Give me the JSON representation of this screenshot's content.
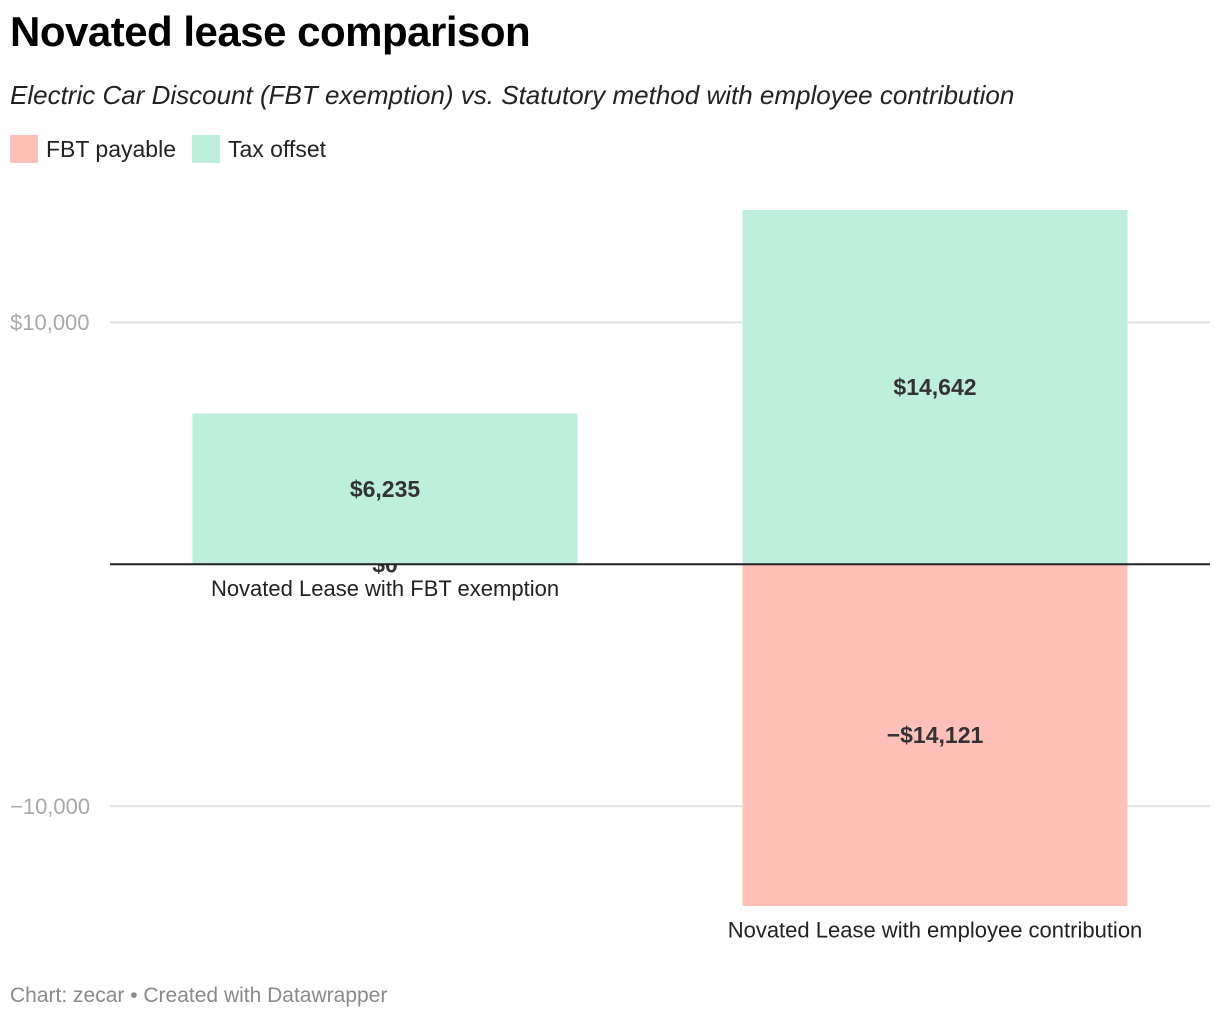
{
  "title": "Novated lease comparison",
  "subtitle": "Electric Car Discount (FBT exemption) vs. Statutory method with employee contribution",
  "legend": [
    {
      "label": "FBT payable",
      "color": "#ffc0b7"
    },
    {
      "label": "Tax offset",
      "color": "#bdefdc"
    }
  ],
  "footer": "Chart: zecar • Created with Datawrapper",
  "colors": {
    "grid": "#e1e1e1",
    "tick_text": "#a8a8a8",
    "baseline": "#222222",
    "value_label": "#333333"
  },
  "chart_data": {
    "type": "bar",
    "stacked": true,
    "title": "Novated lease comparison",
    "subtitle": "Electric Car Discount (FBT exemption) vs. Statutory method with employee contribution",
    "xlabel": "",
    "ylabel": "",
    "ylim": [
      -14121,
      14642
    ],
    "grid": true,
    "categories": [
      "Novated Lease with FBT exemption",
      "Novated Lease with employee contribution"
    ],
    "y_ticks": [
      {
        "value": 10000,
        "label": "$10,000"
      },
      {
        "value": -10000,
        "label": "−10,000"
      }
    ],
    "series": [
      {
        "name": "FBT payable",
        "color": "#ffc0b7",
        "values": [
          0,
          -14121
        ],
        "labels": [
          "$0",
          "−$14,121"
        ]
      },
      {
        "name": "Tax offset",
        "color": "#bdefdc",
        "values": [
          6235,
          14642
        ],
        "labels": [
          "$6,235",
          "$14,642"
        ]
      }
    ]
  }
}
